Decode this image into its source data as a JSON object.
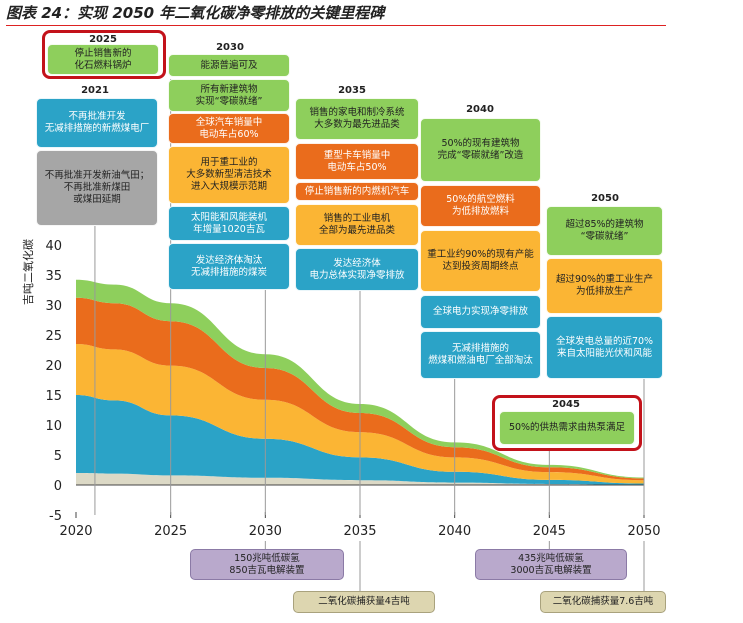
{
  "title": "图表 24：实现 2050 年二氧化碳净零排放的关键里程碑",
  "chart_data": {
    "type": "area",
    "ylabel": "吉吨二氧化碳",
    "ylim": [
      -5,
      40
    ],
    "yticks": [
      -5,
      0,
      5,
      10,
      15,
      20,
      25,
      30,
      35,
      40
    ],
    "xlim": [
      2020,
      2050
    ],
    "xticks": [
      2020,
      2025,
      2030,
      2035,
      2040,
      2045,
      2050
    ],
    "x": [
      2020,
      2022,
      2025,
      2030,
      2035,
      2040,
      2045,
      2050
    ],
    "series": [
      {
        "name": "base",
        "color": "#dcd9c6",
        "values": [
          2,
          1.9,
          1.6,
          1.2,
          0.8,
          0.4,
          0.15,
          0
        ]
      },
      {
        "name": "blue",
        "color": "#2ba3c7",
        "values": [
          13,
          12.2,
          10,
          6.5,
          3.8,
          1.8,
          0.7,
          0.25
        ]
      },
      {
        "name": "yellow",
        "color": "#fbb534",
        "values": [
          8.5,
          8.5,
          8.3,
          6.5,
          4.2,
          2.4,
          1.3,
          0.55
        ]
      },
      {
        "name": "orange",
        "color": "#ea6c1c",
        "values": [
          7.7,
          7.7,
          7.4,
          5.3,
          3.2,
          1.7,
          0.8,
          0.3
        ]
      },
      {
        "name": "green",
        "color": "#8ecf5c",
        "values": [
          3,
          3.1,
          3.0,
          2.3,
          1.5,
          0.8,
          0.4,
          0.15
        ]
      }
    ]
  },
  "milestones": {
    "y2021": {
      "year": "2021",
      "items": [
        {
          "text": "不再批准开发\n无减排措施的新燃煤电厂"
        },
        {
          "text": "不再批准开发新油气田；\n不再批准新煤田\n或煤田延期"
        }
      ]
    },
    "y2025": {
      "year": "2025",
      "items": [
        {
          "text": "停止销售新的\n化石燃料锅炉"
        }
      ]
    },
    "y2030": {
      "year": "2030",
      "items": [
        {
          "text": "能源普遍可及"
        },
        {
          "text": "所有新建筑物\n实现“零碳就绪”"
        },
        {
          "text": "全球汽车销量中\n电动车占60%"
        },
        {
          "text": "用于重工业的\n大多数新型清洁技术\n进入大规模示范期"
        },
        {
          "text": "太阳能和风能装机\n年增量1020吉瓦"
        },
        {
          "text": "发达经济体淘汰\n无减排措施的煤炭"
        }
      ]
    },
    "y2035": {
      "year": "2035",
      "items": [
        {
          "text": "销售的家电和制冷系统\n大多数为最先进品类"
        },
        {
          "text": "重型卡车销量中\n电动车占50%"
        },
        {
          "text": "停止销售新的内燃机汽车"
        },
        {
          "text": "销售的工业电机\n全部为最先进品类"
        },
        {
          "text": "发达经济体\n电力总体实现净零排放"
        }
      ]
    },
    "y2040": {
      "year": "2040",
      "items": [
        {
          "text": "50%的现有建筑物\n完成“零碳就绪”改造"
        },
        {
          "text": "50%的航空燃料\n为低排放燃料"
        },
        {
          "text": "重工业约90%的现有产能\n达到投资周期终点"
        },
        {
          "text": "全球电力实现净零排放"
        },
        {
          "text": "无减排措施的\n燃煤和燃油电厂全部淘汰"
        }
      ]
    },
    "y2045": {
      "year": "2045",
      "items": [
        {
          "text": "50%的供热需求由热泵满足"
        }
      ]
    },
    "y2050": {
      "year": "2050",
      "items": [
        {
          "text": "超过85%的建筑物\n“零碳就绪”"
        },
        {
          "text": "超过90%的重工业生产\n为低排放生产"
        },
        {
          "text": "全球发电总量的近70%\n来自太阳能光伏和风能"
        }
      ]
    }
  },
  "bottom_notes": {
    "b2030_purple": "150兆吨低碳氢\n850吉瓦电解装置",
    "b2030_tan": "二氧化碳捕获量4吉吨",
    "b2050_purple": "435兆吨低碳氢\n3000吉瓦电解装置",
    "b2050_tan": "二氧化碳捕获量7.6吉吨"
  }
}
